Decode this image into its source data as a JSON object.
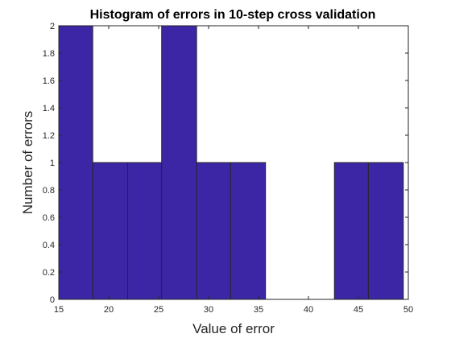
{
  "chart_data": {
    "type": "bar",
    "title": "Histogram of errors in 10-step cross validation",
    "xlabel": "Value of error",
    "ylabel": "Number of errors",
    "xlim": [
      15,
      50
    ],
    "ylim": [
      0,
      2
    ],
    "xticks": [
      15,
      20,
      25,
      30,
      35,
      40,
      45,
      50
    ],
    "yticks": [
      0,
      0.2,
      0.4,
      0.6,
      0.8,
      1,
      1.2,
      1.4,
      1.6,
      1.8,
      2
    ],
    "bin_edges": [
      15,
      18.4,
      21.9,
      25.3,
      28.8,
      32.2,
      35.7,
      39.1,
      42.6,
      46.0,
      49.5
    ],
    "values": [
      2,
      1,
      1,
      2,
      1,
      1,
      0,
      0,
      1,
      1
    ],
    "bar_color": "#3c26a6",
    "edge_color": "#262626",
    "grid": false
  }
}
